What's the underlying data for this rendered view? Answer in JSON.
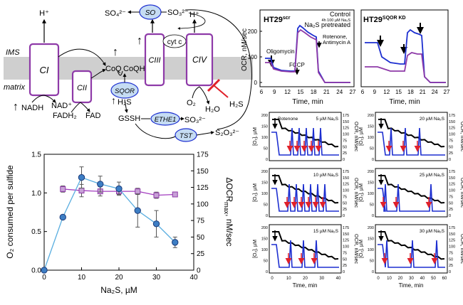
{
  "colors": {
    "purple": "#8e3aa8",
    "blue": "#1d2fd0",
    "lightblue": "#4a9bd6",
    "red": "#e0202a",
    "black": "#000000",
    "membrane": "#cfcfcf",
    "ellipse_fill": "#c5dcf3"
  },
  "pathway": {
    "ims_label": "IMS",
    "matrix_label": "matrix",
    "complexes": [
      "CI",
      "CII",
      "CIII",
      "CIV"
    ],
    "cyt_c": "cyt c",
    "coq": "CoQ",
    "coqh2": "CoQH₂",
    "so_enzyme": "SO",
    "sulfate": "SO₄²⁻",
    "sulfite_top": "SO₃²⁻",
    "sqor": "SQOR",
    "h2s_sqor": "H₂S",
    "h2s_civ": "H₂S",
    "gssh": "GSSH",
    "ethe1": "ETHE1",
    "sulfite_bottom": "SO₃²⁻",
    "tst": "TST",
    "thiosulfate": "S₂O₃²⁻",
    "proton_ci": "H⁺",
    "proton_ciii": "H⁺",
    "proton_civ": "H⁺",
    "nadh": "NADH",
    "nad": "NAD⁺",
    "fadh2": "FADH₂",
    "fad": "FAD",
    "o2": "O₂",
    "h2o": "H₂O"
  },
  "panel_topright": {
    "title_left": "HT29",
    "title_left_sup": "scr",
    "title_right": "HT29",
    "title_right_sup": "SQOR KD",
    "legend_control": "Control",
    "legend_pretreated_prefix": "4h 100 µM Na₂S",
    "legend_pretreated": "Na₂S pretreated",
    "ann_oligomycin": "Oligomycin",
    "ann_fccp": "FCCP",
    "ann_rotenone": "Rotenone,",
    "ann_antimycin": "Antimycin A",
    "ylabel": "OCR, nM/sec",
    "xlabel": "Time, min",
    "yticks": [
      "0",
      "100",
      "200"
    ],
    "xticks": [
      "6",
      "9",
      "12",
      "15",
      "18",
      "21",
      "24",
      "27"
    ]
  },
  "chart_data": [
    {
      "type": "line",
      "title": "",
      "xlabel": "Na₂S, µM",
      "ylabel": "O₂ consumed per sulfide",
      "y2label": "ΔOCR",
      "y2label_sub": "max",
      "y2label_unit": ", nM/sec",
      "xlim": [
        0,
        40
      ],
      "ylim": [
        0,
        1.5
      ],
      "y2lim": [
        0,
        175
      ],
      "xticks": [
        "0",
        "10",
        "20",
        "30",
        "40"
      ],
      "yticks": [
        "0.0",
        "0.5",
        "1.0",
        "1.5"
      ],
      "y2ticks": [
        "0",
        "25",
        "50",
        "75",
        "100",
        "125",
        "150",
        "175"
      ],
      "series": [
        {
          "axis": "left",
          "color": "#a23bbf",
          "x": [
            5,
            10,
            15,
            20,
            25,
            30,
            35
          ],
          "y": [
            1.05,
            1.03,
            1.02,
            1.02,
            1.02,
            0.97,
            0.98
          ],
          "err": [
            0.04,
            0.08,
            0.06,
            0.04,
            0.04,
            0.04,
            0.03
          ]
        },
        {
          "axis": "right",
          "color": "#5aaee0",
          "x": [
            0,
            5,
            10,
            15,
            20,
            25,
            30,
            35
          ],
          "y": [
            0,
            80,
            140,
            130,
            123,
            90,
            70,
            42
          ],
          "err": [
            0,
            0,
            16,
            12,
            10,
            25,
            20,
            8
          ]
        }
      ]
    }
  ],
  "traces": {
    "panels": [
      {
        "label": "Rotenone",
        "conc": "5 µM Na₂S"
      },
      {
        "label": "",
        "conc": "10 µM Na₂S"
      },
      {
        "label": "",
        "conc": "15 µM Na₂S"
      },
      {
        "label": "",
        "conc": "20 µM Na₂S"
      },
      {
        "label": "",
        "conc": "25 µM Na₂S"
      },
      {
        "label": "",
        "conc": "30 µM Na₂S"
      }
    ],
    "ylabel_left": "[O₂], µM",
    "ylabel_right": "OCR, nM/sec",
    "yticks_left": [
      "0",
      "50",
      "100",
      "150",
      "200"
    ],
    "yticks_right": [
      "0",
      "25",
      "50",
      "75",
      "100",
      "125",
      "150",
      "175"
    ],
    "xticks": [
      "0",
      "10",
      "20",
      "30",
      "40"
    ],
    "xticks_right": [
      "0",
      "10",
      "20",
      "30",
      "40",
      "50",
      "60"
    ],
    "xlabel": "Time, min"
  }
}
